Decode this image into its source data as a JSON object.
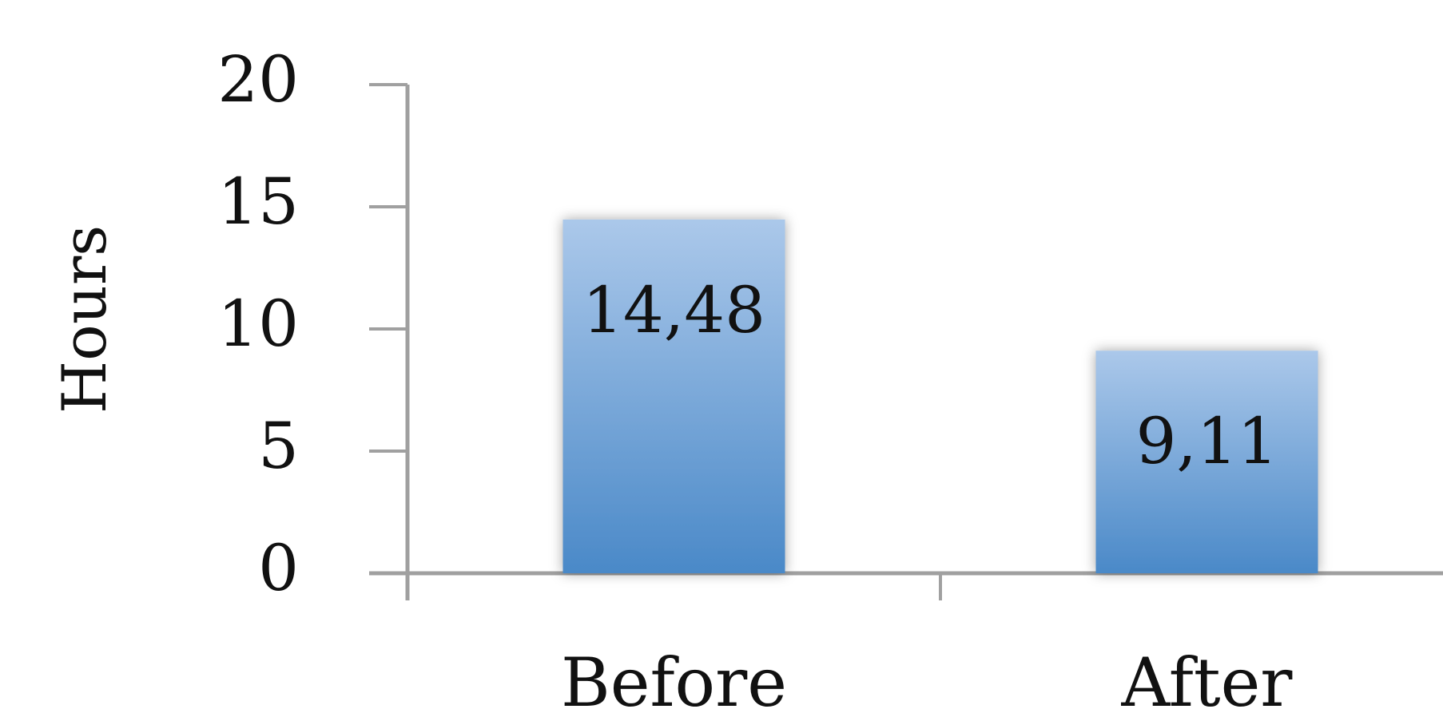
{
  "chart_data": {
    "type": "bar",
    "ylabel": "Hours",
    "categories": [
      "Before",
      "After"
    ],
    "values": [
      14.48,
      9.11
    ],
    "value_labels": [
      "14,48",
      "9,11"
    ],
    "color": "#5a93cf",
    "ylim": [
      0,
      20
    ],
    "yticks": [
      0,
      5,
      10,
      15,
      20
    ],
    "grid": false
  }
}
